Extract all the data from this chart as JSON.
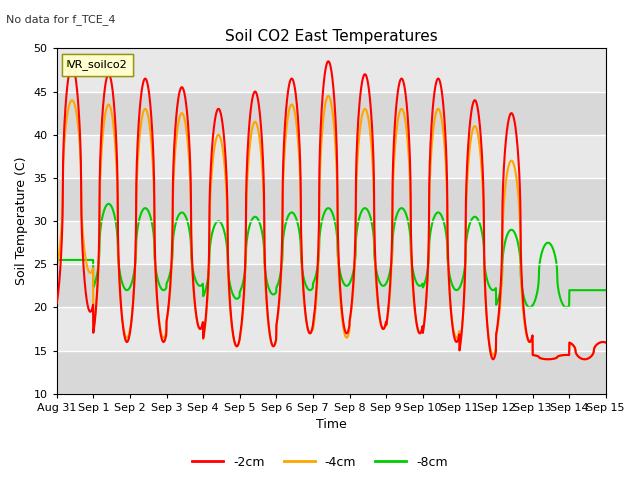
{
  "title": "Soil CO2 East Temperatures",
  "top_left_note": "No data for f_TCE_4",
  "xlabel": "Time",
  "ylabel": "Soil Temperature (C)",
  "ylim": [
    10,
    50
  ],
  "xlim_days": [
    0,
    15
  ],
  "x_tick_labels": [
    "Aug 31",
    "Sep 1",
    "Sep 2",
    "Sep 3",
    "Sep 4",
    "Sep 5",
    "Sep 6",
    "Sep 7",
    "Sep 8",
    "Sep 9",
    "Sep 10",
    "Sep 11",
    "Sep 12",
    "Sep 13",
    "Sep 14",
    "Sep 15"
  ],
  "legend_label": "VR_soilco2",
  "series_labels": [
    "-2cm",
    "-4cm",
    "-8cm"
  ],
  "colors": [
    "#ff0000",
    "#ffa500",
    "#00cc00"
  ],
  "fig_bg_color": "#ffffff",
  "axes_bg_color": "#e8e8e8",
  "num_days": 15,
  "pts_per_day": 144,
  "depth_2cm": {
    "max_temps": [
      48.0,
      47.0,
      46.5,
      45.5,
      43.0,
      45.0,
      46.5,
      48.5,
      47.0,
      46.5,
      46.5,
      44.0,
      42.5,
      14.0,
      14.0
    ],
    "min_temps": [
      19.5,
      16.0,
      16.0,
      17.5,
      15.5,
      15.5,
      17.0,
      17.0,
      17.5,
      17.0,
      16.0,
      14.0,
      16.0,
      14.5,
      16.0
    ]
  },
  "depth_4cm": {
    "max_temps": [
      44.0,
      43.5,
      43.0,
      42.5,
      40.0,
      41.5,
      43.5,
      44.5,
      43.0,
      43.0,
      43.0,
      41.0,
      37.0,
      14.0,
      14.0
    ],
    "min_temps": [
      24.0,
      16.5,
      16.5,
      17.5,
      15.5,
      15.5,
      17.0,
      16.5,
      17.5,
      17.0,
      16.5,
      14.5,
      16.0,
      14.5,
      16.0
    ]
  },
  "depth_8cm": {
    "max_temps": [
      25.5,
      32.0,
      31.5,
      31.0,
      30.0,
      30.5,
      31.0,
      31.5,
      31.5,
      31.5,
      31.0,
      30.5,
      29.0,
      27.5,
      22.0
    ],
    "min_temps": [
      25.5,
      22.0,
      22.0,
      22.5,
      21.0,
      21.5,
      22.0,
      22.5,
      22.5,
      22.5,
      22.0,
      22.0,
      20.0,
      20.0,
      22.0
    ]
  }
}
